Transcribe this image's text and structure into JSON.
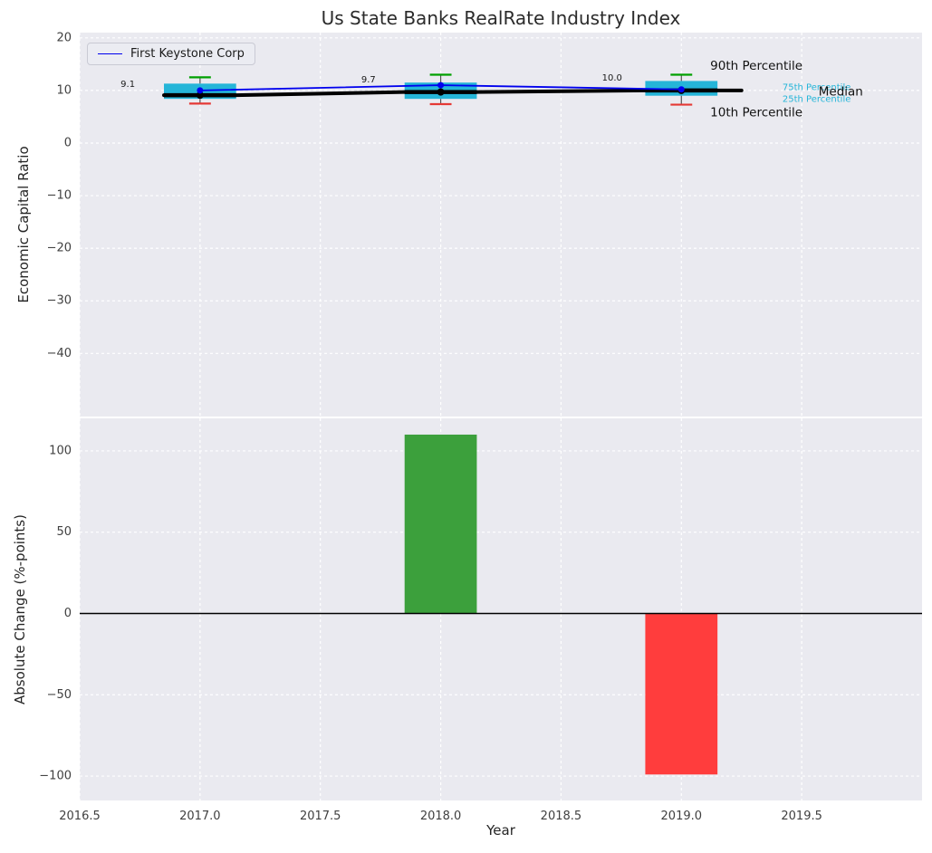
{
  "figure": {
    "title": "Us State Banks RealRate Industry Index",
    "xlabel": "Year"
  },
  "chart_data": [
    {
      "type": "boxplot+line",
      "title": "Us State Banks RealRate Industry Index",
      "ylabel": "Economic Capital Ratio",
      "series_name": "First Keystone Corp",
      "series_color": "#0000ee",
      "legend_position": "upper left",
      "grid": true,
      "xlim": [
        2016.5,
        2020.0
      ],
      "ylim": [
        -52,
        21
      ],
      "yticks": [
        {
          "v": 20,
          "label": "20"
        },
        {
          "v": 10,
          "label": "10"
        },
        {
          "v": 0,
          "label": "0"
        },
        {
          "v": -10,
          "label": "−10"
        },
        {
          "v": -20,
          "label": "−20"
        },
        {
          "v": -30,
          "label": "−30"
        },
        {
          "v": -40,
          "label": "−40"
        }
      ],
      "xticks": [
        {
          "v": 2016.5,
          "label": "2016.5"
        },
        {
          "v": 2017.0,
          "label": "2017.0"
        },
        {
          "v": 2017.5,
          "label": "2017.5"
        },
        {
          "v": 2018.0,
          "label": "2018.0"
        },
        {
          "v": 2018.5,
          "label": "2018.5"
        },
        {
          "v": 2019.0,
          "label": "2019.0"
        },
        {
          "v": 2019.5,
          "label": "2019.5"
        }
      ],
      "show_xtick_labels": false,
      "box_color": "#25b5d8",
      "median_color": "#000000",
      "cap_top_color": "#00a000",
      "cap_bottom_color": "#e53935",
      "box_width": 0.3,
      "cap_width": 0.09,
      "boxes": [
        {
          "x": 2017,
          "p10": 7.5,
          "p25": 8.4,
          "median": 9.1,
          "p75": 11.3,
          "p90": 12.5
        },
        {
          "x": 2018,
          "p10": 7.4,
          "p25": 8.4,
          "median": 9.7,
          "p75": 11.5,
          "p90": 13.0
        },
        {
          "x": 2019,
          "p10": 7.3,
          "p25": 9.0,
          "median": 10.0,
          "p75": 11.8,
          "p90": 13.0
        }
      ],
      "company_values": [
        {
          "x": 2017,
          "y": 10.0
        },
        {
          "x": 2018,
          "y": 11.0
        },
        {
          "x": 2019,
          "y": 10.2
        }
      ],
      "median_value_labels": [
        {
          "text": "9.1",
          "x": 2016.67,
          "y": 10.7
        },
        {
          "text": "9.7",
          "x": 2017.67,
          "y": 11.5
        },
        {
          "text": "10.0",
          "x": 2018.67,
          "y": 11.9
        }
      ],
      "percentile_labels": [
        {
          "text": "90th Percentile",
          "x": 2019.12,
          "y": 14.6,
          "color": "#111111",
          "size": 13.5
        },
        {
          "text": "75th Percentile",
          "x": 2019.42,
          "y": 10.5,
          "color": "#25b5d8",
          "size": 10
        },
        {
          "text": "Median",
          "x": 2019.57,
          "y": 9.7,
          "color": "#111111",
          "size": 13.5
        },
        {
          "text": "25th Percentile",
          "x": 2019.42,
          "y": 8.3,
          "color": "#25b5d8",
          "size": 10
        },
        {
          "text": "10th Percentile",
          "x": 2019.12,
          "y": 5.8,
          "color": "#111111",
          "size": 13.5
        }
      ]
    },
    {
      "type": "bar",
      "ylabel": "Absolute Change (%-points)",
      "xlabel": "Year",
      "grid": true,
      "xlim": [
        2016.5,
        2020.0
      ],
      "ylim": [
        -115,
        120
      ],
      "yticks": [
        {
          "v": 100,
          "label": "100"
        },
        {
          "v": 50,
          "label": "50"
        },
        {
          "v": 0,
          "label": "0"
        },
        {
          "v": -50,
          "label": "−50"
        },
        {
          "v": -100,
          "label": "−100"
        }
      ],
      "xticks": [
        {
          "v": 2016.5,
          "label": "2016.5"
        },
        {
          "v": 2017.0,
          "label": "2017.0"
        },
        {
          "v": 2017.5,
          "label": "2017.5"
        },
        {
          "v": 2018.0,
          "label": "2018.0"
        },
        {
          "v": 2018.5,
          "label": "2018.5"
        },
        {
          "v": 2019.0,
          "label": "2019.0"
        },
        {
          "v": 2019.5,
          "label": "2019.5"
        }
      ],
      "show_xtick_labels": true,
      "zero_line": true,
      "bar_width": 0.3,
      "bars": [
        {
          "x": 2018,
          "value": 110,
          "color": "#3ca03c"
        },
        {
          "x": 2019,
          "value": -99,
          "color": "#ff3d3d"
        }
      ]
    }
  ]
}
